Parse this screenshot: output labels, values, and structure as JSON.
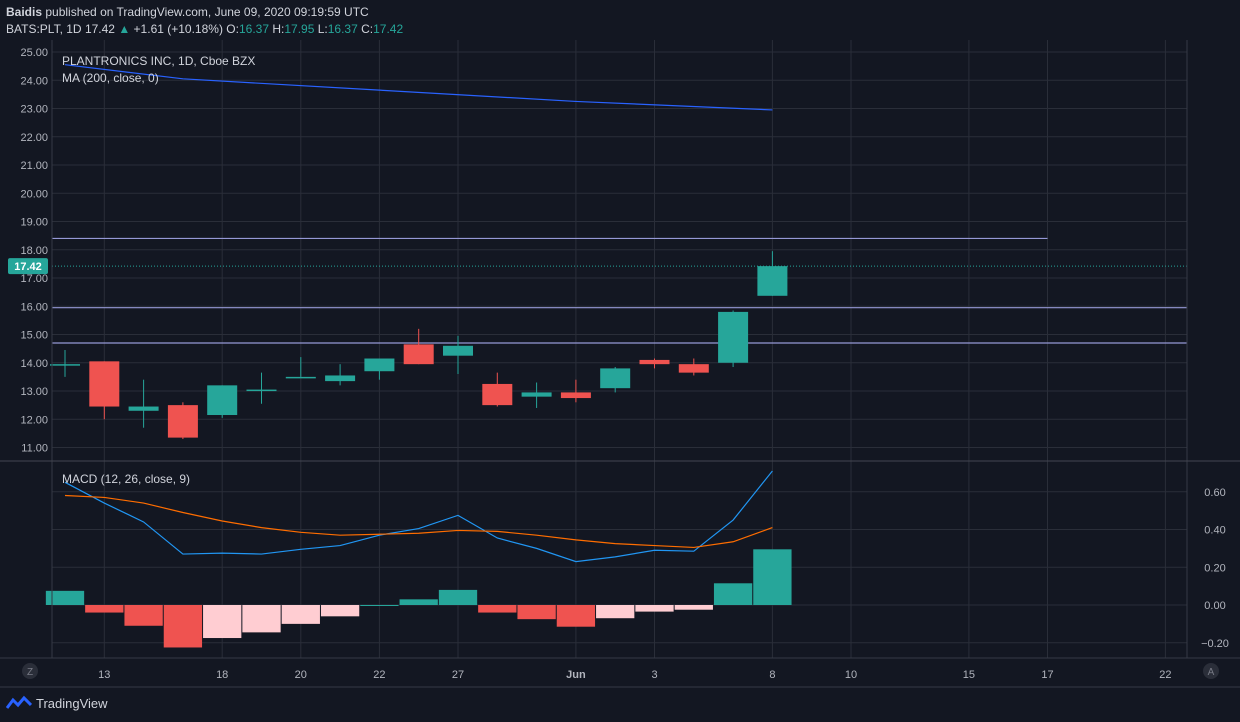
{
  "header": {
    "author": "Baidis",
    "published": "published on TradingView.com, June 09, 2020 09:19:59 UTC",
    "symbol": "BATS:PLT, 1D",
    "last": "17.42",
    "change": "+1.61 (+10.18%)",
    "o_label": "O:",
    "o": "16.37",
    "h_label": "H:",
    "h": "17.95",
    "l_label": "L:",
    "l": "16.37",
    "c_label": "C:",
    "c": "17.42"
  },
  "price_pane": {
    "title": "PLANTRONICS INC, 1D, Cboe BZX",
    "indicator": "MA (200, close, 0)"
  },
  "macd_pane": {
    "indicator": "MACD (12, 26, close, 9)"
  },
  "footer": {
    "brand": "TradingView"
  },
  "corner_buttons": {
    "left": "Z",
    "right": "A"
  },
  "colors": {
    "up": "#26a69a",
    "down": "#ef5350",
    "ma": "#2962ff",
    "signal": "#ff6d00",
    "level": "#9598d6"
  },
  "chart_data": [
    {
      "type": "candlestick",
      "y_ticks": [
        "25.00",
        "24.00",
        "23.00",
        "22.00",
        "21.00",
        "20.00",
        "19.00",
        "18.00",
        "17.00",
        "16.00",
        "15.00",
        "14.00",
        "13.00",
        "12.00",
        "11.00"
      ],
      "ylim": [
        10.6,
        25.1
      ],
      "x_ticks": [
        {
          "label": "13",
          "i": 1
        },
        {
          "label": "18",
          "i": 4
        },
        {
          "label": "20",
          "i": 6
        },
        {
          "label": "22",
          "i": 8
        },
        {
          "label": "27",
          "i": 10
        },
        {
          "label": "Jun",
          "i": 13
        },
        {
          "label": "3",
          "i": 15
        },
        {
          "label": "8",
          "i": 18
        },
        {
          "label": "10",
          "i": 20
        },
        {
          "label": "15",
          "i": 23
        },
        {
          "label": "17",
          "i": 25
        },
        {
          "label": "22",
          "i": 28
        }
      ],
      "last_price_label": "17.42",
      "candles": [
        {
          "o": 13.95,
          "h": 14.45,
          "l": 13.5,
          "c": 13.95
        },
        {
          "o": 14.05,
          "h": 14.05,
          "l": 12.0,
          "c": 12.45
        },
        {
          "o": 12.3,
          "h": 13.4,
          "l": 11.7,
          "c": 12.45
        },
        {
          "o": 12.5,
          "h": 12.6,
          "l": 11.3,
          "c": 11.35
        },
        {
          "o": 12.15,
          "h": 13.2,
          "l": 12.05,
          "c": 13.2
        },
        {
          "o": 13.05,
          "h": 13.65,
          "l": 12.55,
          "c": 13.05
        },
        {
          "o": 13.5,
          "h": 14.2,
          "l": 13.5,
          "c": 13.5
        },
        {
          "o": 13.35,
          "h": 13.95,
          "l": 13.2,
          "c": 13.55
        },
        {
          "o": 13.7,
          "h": 14.15,
          "l": 13.4,
          "c": 14.15
        },
        {
          "o": 14.65,
          "h": 15.2,
          "l": 13.95,
          "c": 13.95
        },
        {
          "o": 14.25,
          "h": 14.95,
          "l": 13.6,
          "c": 14.6
        },
        {
          "o": 13.25,
          "h": 13.65,
          "l": 12.45,
          "c": 12.5
        },
        {
          "o": 12.8,
          "h": 13.3,
          "l": 12.4,
          "c": 12.95
        },
        {
          "o": 12.95,
          "h": 13.4,
          "l": 12.6,
          "c": 12.75
        },
        {
          "o": 13.1,
          "h": 13.85,
          "l": 12.95,
          "c": 13.8
        },
        {
          "o": 14.1,
          "h": 14.15,
          "l": 13.8,
          "c": 13.95
        },
        {
          "o": 13.95,
          "h": 14.15,
          "l": 13.55,
          "c": 13.65
        },
        {
          "o": 14.0,
          "h": 15.85,
          "l": 13.85,
          "c": 15.8
        },
        {
          "o": 16.37,
          "h": 17.95,
          "l": 16.37,
          "c": 17.42
        }
      ],
      "ma": [
        {
          "i": 0,
          "v": 24.55
        },
        {
          "i": 3,
          "v": 24.05
        },
        {
          "i": 8,
          "v": 23.65
        },
        {
          "i": 13,
          "v": 23.25
        },
        {
          "i": 18,
          "v": 22.95
        }
      ],
      "levels": [
        {
          "v": 18.4,
          "i0": 0,
          "i1": 25
        },
        {
          "v": 15.95,
          "i0": 0,
          "i1": 29
        },
        {
          "v": 14.7,
          "i0": 0,
          "i1": 29
        }
      ]
    },
    {
      "type": "macd",
      "y_ticks": [
        {
          "label": "0.60",
          "v": 0.6
        },
        {
          "label": "0.40",
          "v": 0.4
        },
        {
          "label": "0.20",
          "v": 0.2
        },
        {
          "label": "0.00",
          "v": 0.0
        },
        {
          "label": "−0.20",
          "v": -0.2
        }
      ],
      "ylim": [
        -0.28,
        0.75
      ],
      "macd": [
        0.65,
        0.54,
        0.44,
        0.27,
        0.275,
        0.27,
        0.295,
        0.315,
        0.37,
        0.405,
        0.475,
        0.355,
        0.3,
        0.23,
        0.255,
        0.29,
        0.285,
        0.45,
        0.71
      ],
      "signal": [
        0.58,
        0.57,
        0.54,
        0.49,
        0.445,
        0.41,
        0.385,
        0.37,
        0.375,
        0.38,
        0.395,
        0.39,
        0.37,
        0.345,
        0.325,
        0.315,
        0.305,
        0.335,
        0.41
      ],
      "histogram": [
        0.075,
        -0.04,
        -0.11,
        -0.225,
        -0.175,
        -0.145,
        -0.1,
        -0.06,
        0.0,
        0.03,
        0.08,
        -0.04,
        -0.075,
        -0.115,
        -0.07,
        -0.035,
        -0.025,
        0.115,
        0.295
      ]
    }
  ]
}
